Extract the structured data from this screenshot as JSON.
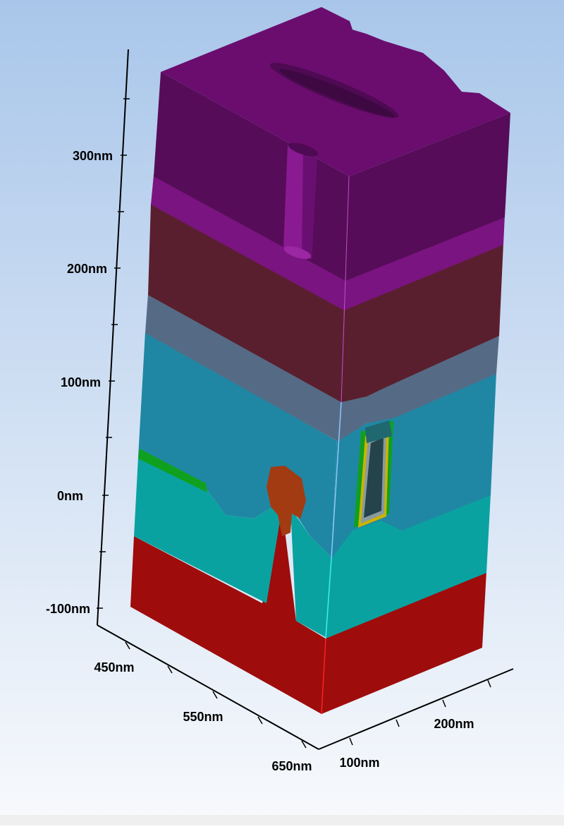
{
  "scene": {
    "background_top": "#a9c6ea",
    "background_bottom": "#f7f9fc"
  },
  "axes": {
    "z": {
      "ticks": [
        {
          "label": "300nm",
          "value": 300
        },
        {
          "label": "200nm",
          "value": 200
        },
        {
          "label": "100nm",
          "value": 100
        },
        {
          "label": "0nm",
          "value": 0
        },
        {
          "label": "-100nm",
          "value": -100
        }
      ]
    },
    "x": {
      "ticks": [
        {
          "label": "450nm",
          "value": 450
        },
        {
          "label": "550nm",
          "value": 550
        },
        {
          "label": "650nm",
          "value": 650
        }
      ]
    },
    "y": {
      "ticks": [
        {
          "label": "100nm",
          "value": 100
        },
        {
          "label": "200nm",
          "value": 200
        }
      ]
    }
  },
  "colors": {
    "top_metal": "#6a0d6e",
    "top_metal_dark": "#560c58",
    "top_metal_band": "#7a1480",
    "maroon_layer": "#5a1f2e",
    "slate_layer": "#556b85",
    "steel_blue_layer": "#1f87a4",
    "teal_layer": "#0aa2a0",
    "red_substrate": "#9e0c0c",
    "orange_region": "#a23b12",
    "green_liner": "#10a020",
    "yellow_liner": "#c8b400",
    "dark_trench": "#24434a"
  }
}
